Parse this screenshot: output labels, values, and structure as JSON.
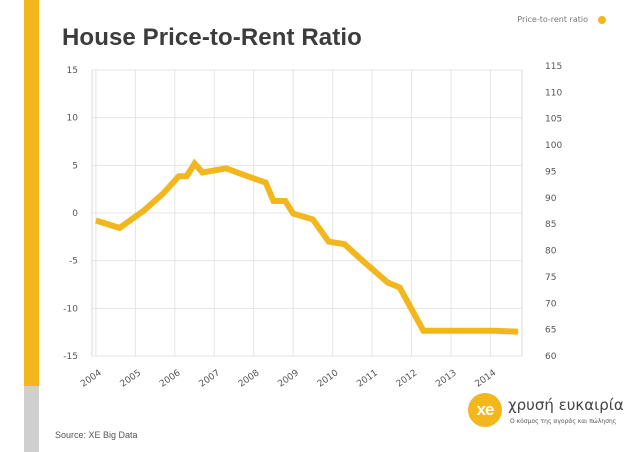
{
  "title": "House Price-to-Rent Ratio",
  "source": "Source: XE Big Data",
  "logo": {
    "mark": "xe",
    "name": "χρυσή ευκαιρία",
    "tagline": "Ο κόσμος της αγοράς και πώλησης"
  },
  "colors": {
    "accent": "#f2b71d",
    "side_bar": "#cfcfcf",
    "grid": "#e4e4e4",
    "text": "#3c3c3c"
  },
  "chart_data": {
    "type": "line",
    "title": "House Price-to-Rent Ratio",
    "legend": {
      "entries": [
        "Price-to-rent ratio"
      ],
      "placement": "top-right"
    },
    "left_axis": {
      "ylim": [
        -15,
        15
      ],
      "ticks": [
        15,
        10,
        5,
        0,
        -5,
        -10,
        -15
      ],
      "tick_labels": [
        "15",
        "10",
        "5",
        "0",
        "-5",
        "-10",
        "-15"
      ]
    },
    "right_axis": {
      "ylim": [
        60,
        115
      ],
      "ticks": [
        115,
        110,
        105,
        100,
        95,
        90,
        85,
        80,
        75,
        70,
        65,
        60
      ],
      "tick_labels": [
        "115",
        "110",
        "105",
        "100",
        "95",
        "90",
        "85",
        "80",
        "75",
        "70",
        "65",
        "60"
      ]
    },
    "x_axis": {
      "range": [
        2003.9,
        2014.8
      ],
      "ticks": [
        2004,
        2005,
        2006,
        2007,
        2008,
        2009,
        2010,
        2011,
        2012,
        2013,
        2014
      ],
      "tick_labels": [
        "2004",
        "2005",
        "2006",
        "2007",
        "2008",
        "2009",
        "2010",
        "2011",
        "2012",
        "2013",
        "2014"
      ]
    },
    "grid": "horizontal and vertical",
    "series": [
      {
        "name": "Price-to-rent ratio",
        "axis": "right",
        "x": [
          2004.0,
          2004.6,
          2005.2,
          2005.7,
          2006.1,
          2006.3,
          2006.5,
          2006.7,
          2007.3,
          2007.8,
          2008.3,
          2008.5,
          2008.8,
          2009.0,
          2009.5,
          2009.9,
          2010.3,
          2010.8,
          2011.4,
          2011.7,
          2012.3,
          2012.6,
          2012.8,
          2013.5,
          2014.1,
          2014.7
        ],
        "y": [
          85.7,
          84.3,
          87.5,
          90.8,
          94.1,
          94.1,
          96.5,
          94.8,
          95.6,
          94.2,
          92.9,
          89.4,
          89.4,
          87.0,
          85.9,
          81.7,
          81.2,
          77.8,
          73.9,
          73.0,
          64.8,
          64.8,
          64.8,
          64.8,
          64.8,
          64.6
        ]
      }
    ]
  }
}
